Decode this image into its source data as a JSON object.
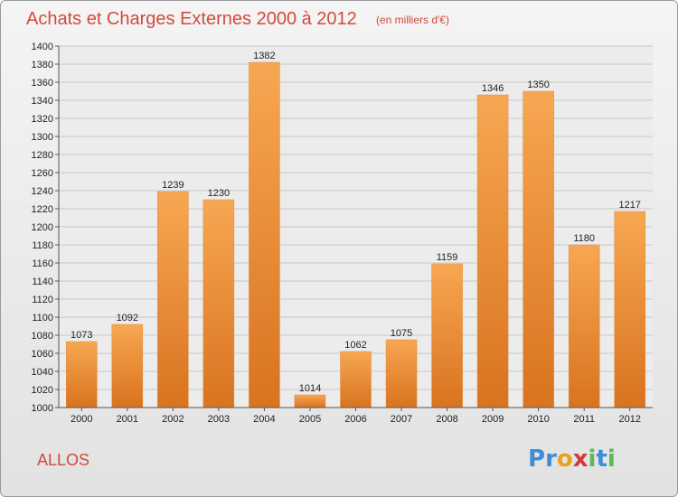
{
  "title": "Achats et Charges Externes 2000 à 2012",
  "subtitle": "(en milliers d'€)",
  "commune": "ALLOS",
  "logo": {
    "text": "Proxiti",
    "letters": [
      {
        "ch": "P",
        "color": "#3a8fd6"
      },
      {
        "ch": "r",
        "color": "#3a8fd6"
      },
      {
        "ch": "o",
        "color": "#e8a21a"
      },
      {
        "ch": "x",
        "color": "#d23a3a"
      },
      {
        "ch": "i",
        "color": "#5cb85c"
      },
      {
        "ch": "t",
        "color": "#3a8fd6"
      },
      {
        "ch": "i",
        "color": "#5cb85c"
      }
    ]
  },
  "colors": {
    "bar_light": "#f7a752",
    "bar_dark": "#d9731f",
    "accent": "#d24a3c",
    "grid": "#c9c9c9"
  },
  "chart_data": {
    "type": "bar",
    "categories": [
      "2000",
      "2001",
      "2002",
      "2003",
      "2004",
      "2005",
      "2006",
      "2007",
      "2008",
      "2009",
      "2010",
      "2011",
      "2012"
    ],
    "values": [
      1073,
      1092,
      1239,
      1230,
      1382,
      1014,
      1062,
      1075,
      1159,
      1346,
      1350,
      1180,
      1217
    ],
    "title": "Achats et Charges Externes 2000 à 2012",
    "ylim": [
      1000,
      1400
    ],
    "ytick_step": 20,
    "grid": true,
    "legend": "none"
  }
}
